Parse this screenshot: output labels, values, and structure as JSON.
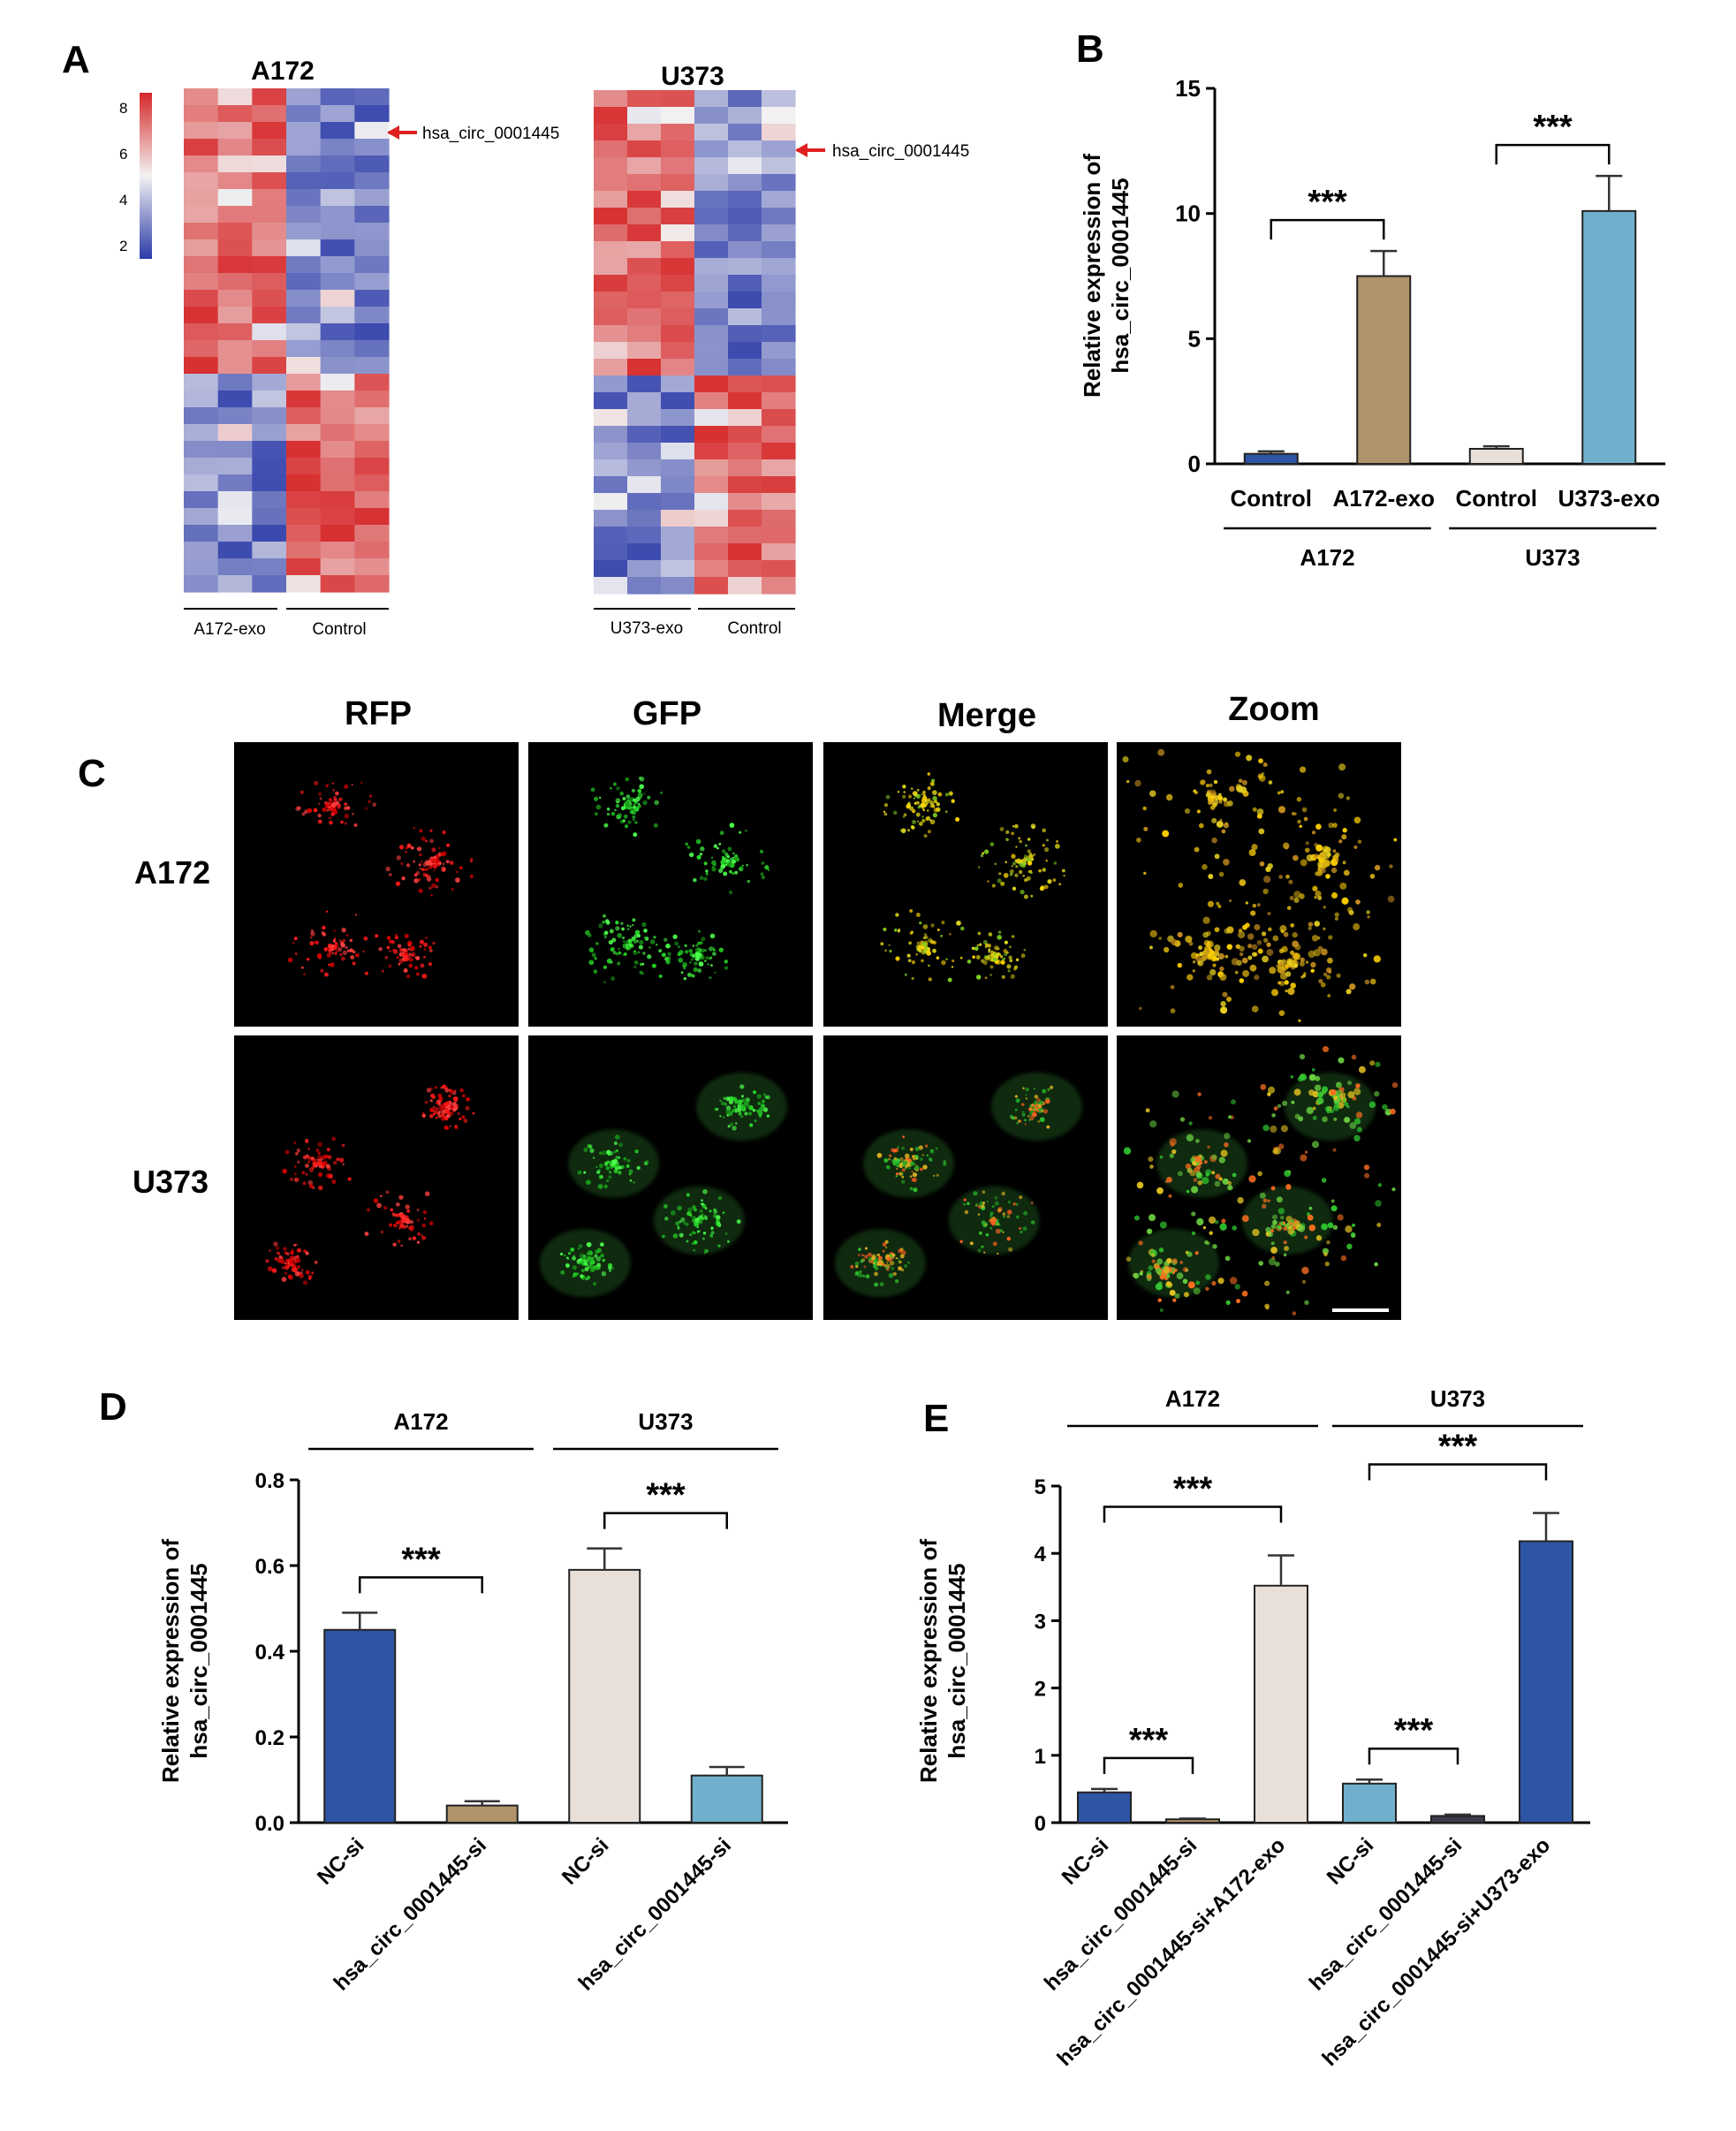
{
  "panel_a": {
    "letter": "A",
    "colorbar_ticks": [
      "8",
      "6",
      "4",
      "2"
    ],
    "heatmaps": [
      {
        "title": "A172",
        "arrow_label": "hsa_circ_0001445",
        "group_labels": [
          "A172-exo",
          "Control"
        ],
        "columns": 6,
        "rows": 30,
        "seed": 11
      },
      {
        "title": "U373",
        "arrow_label": "hsa_circ_0001445",
        "group_labels": [
          "U373-exo",
          "Control"
        ],
        "columns": 6,
        "rows": 30,
        "seed": 29
      }
    ],
    "colors": {
      "high": "#d62728",
      "mid": "#f2f2f2",
      "low": "#2b3aa8"
    }
  },
  "panel_c": {
    "letter": "C",
    "column_headers": [
      "RFP",
      "GFP",
      "Merge",
      "Zoom"
    ],
    "row_labels": [
      "A172",
      "U373"
    ]
  },
  "chart_data": [
    {
      "panel": "B",
      "type": "bar",
      "categories": [
        "Control",
        "A172-exo",
        "Control",
        "U373-exo"
      ],
      "values": [
        0.4,
        7.5,
        0.6,
        10.1
      ],
      "errors": [
        0.1,
        1.0,
        0.1,
        1.4
      ],
      "colors": [
        "#2e54a4",
        "#b0936a",
        "#e7dfd8",
        "#70b0cc"
      ],
      "ylabel": [
        "Relative expression of",
        "hsa_circ_0001445"
      ],
      "ylim": [
        0,
        15
      ],
      "yticks": [
        "0",
        "5",
        "10",
        "15"
      ],
      "groups": [
        {
          "label": "A172",
          "from": 0,
          "to": 1
        },
        {
          "label": "U373",
          "from": 2,
          "to": 3
        }
      ],
      "significance": [
        {
          "from": 0,
          "to": 1,
          "label": "***"
        },
        {
          "from": 2,
          "to": 3,
          "label": "***"
        }
      ]
    },
    {
      "panel": "D",
      "type": "bar",
      "categories": [
        "NC-si",
        "hsa_circ_0001445-si",
        "NC-si",
        "hsa_circ_0001445-si"
      ],
      "values": [
        0.45,
        0.04,
        0.59,
        0.11
      ],
      "errors": [
        0.04,
        0.01,
        0.05,
        0.02
      ],
      "colors": [
        "#2e54a4",
        "#b0936a",
        "#e7dfd8",
        "#70b0cc"
      ],
      "ylabel": [
        "Relative expression of",
        "hsa_circ_0001445"
      ],
      "ylim": [
        0,
        0.8
      ],
      "yticks": [
        "0.0",
        "0.2",
        "0.4",
        "0.6",
        "0.8"
      ],
      "groups": [
        {
          "label": "A172",
          "from": 0,
          "to": 1
        },
        {
          "label": "U373",
          "from": 2,
          "to": 3
        }
      ],
      "significance": [
        {
          "from": 0,
          "to": 1,
          "label": "***"
        },
        {
          "from": 2,
          "to": 3,
          "label": "***"
        }
      ]
    },
    {
      "panel": "E",
      "type": "bar",
      "categories": [
        "NC-si",
        "hsa_circ_0001445-si",
        "hsa_circ_0001445-si+A172-exo",
        "NC-si",
        "hsa_circ_0001445-si",
        "hsa_circ_0001445-si+U373-exo"
      ],
      "values": [
        0.45,
        0.05,
        3.52,
        0.58,
        0.1,
        4.18
      ],
      "errors": [
        0.05,
        0.01,
        0.45,
        0.06,
        0.02,
        0.42
      ],
      "colors": [
        "#2e54a4",
        "#b0936a",
        "#e7dfd8",
        "#70b0cc",
        "#3c3c4a",
        "#2e54a4"
      ],
      "ylabel": [
        "Relative expression of",
        "hsa_circ_0001445"
      ],
      "ylim": [
        0,
        5
      ],
      "yticks": [
        "0",
        "1",
        "2",
        "3",
        "4",
        "5"
      ],
      "groups": [
        {
          "label": "A172",
          "from": 0,
          "to": 2
        },
        {
          "label": "U373",
          "from": 3,
          "to": 5
        }
      ],
      "significance": [
        {
          "from": 0,
          "to": 2,
          "label": "***"
        },
        {
          "from": 0,
          "to": 1,
          "label": "***"
        },
        {
          "from": 3,
          "to": 5,
          "label": "***"
        },
        {
          "from": 3,
          "to": 4,
          "label": "***"
        }
      ]
    }
  ]
}
